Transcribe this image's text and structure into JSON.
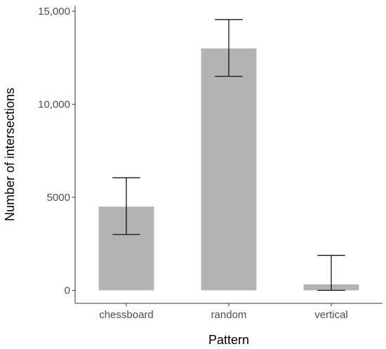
{
  "chart_data": {
    "type": "bar",
    "title": "",
    "xlabel": "Pattern",
    "ylabel": "Number of intersections",
    "categories": [
      "chessboard",
      "random",
      "vertical"
    ],
    "values": [
      4500,
      13000,
      320
    ],
    "error_low": [
      3000,
      11500,
      0
    ],
    "error_high": [
      6050,
      14550,
      1880
    ],
    "ylim": [
      -700,
      15300
    ],
    "yticks": [
      0,
      5000,
      10000,
      15000
    ],
    "ytick_labels": [
      "0",
      "5000",
      "10,000",
      "15,000"
    ],
    "bar_color": "#b3b3b3",
    "grid": false,
    "legend": "none"
  }
}
